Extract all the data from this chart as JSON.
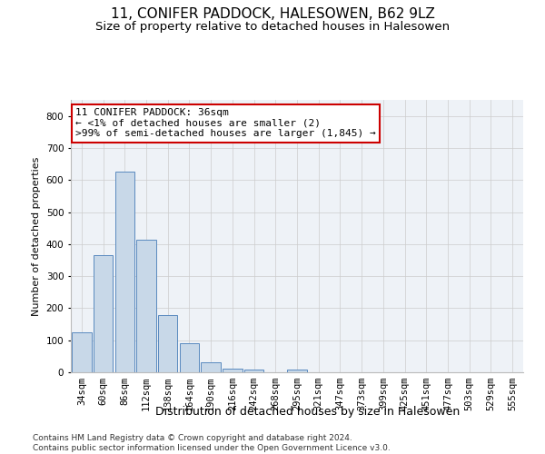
{
  "title1": "11, CONIFER PADDOCK, HALESOWEN, B62 9LZ",
  "title2": "Size of property relative to detached houses in Halesowen",
  "xlabel": "Distribution of detached houses by size in Halesowen",
  "ylabel": "Number of detached properties",
  "categories": [
    "34sqm",
    "60sqm",
    "86sqm",
    "112sqm",
    "138sqm",
    "164sqm",
    "190sqm",
    "216sqm",
    "242sqm",
    "268sqm",
    "295sqm",
    "321sqm",
    "347sqm",
    "373sqm",
    "399sqm",
    "425sqm",
    "451sqm",
    "477sqm",
    "503sqm",
    "529sqm",
    "555sqm"
  ],
  "values": [
    125,
    365,
    625,
    415,
    178,
    90,
    30,
    12,
    8,
    0,
    8,
    0,
    0,
    0,
    0,
    0,
    0,
    0,
    0,
    0,
    0
  ],
  "bar_color": "#c8d8e8",
  "bar_edge_color": "#5a8abf",
  "annotation_line1": "11 CONIFER PADDOCK: 36sqm",
  "annotation_line2": "← <1% of detached houses are smaller (2)",
  "annotation_line3": ">99% of semi-detached houses are larger (1,845) →",
  "annotation_box_color": "#cc0000",
  "annotation_box_fill": "white",
  "ylim": [
    0,
    850
  ],
  "yticks": [
    0,
    100,
    200,
    300,
    400,
    500,
    600,
    700,
    800
  ],
  "grid_color": "#cccccc",
  "bg_color": "#eef2f7",
  "footer_line1": "Contains HM Land Registry data © Crown copyright and database right 2024.",
  "footer_line2": "Contains public sector information licensed under the Open Government Licence v3.0.",
  "title1_fontsize": 11,
  "title2_fontsize": 9.5,
  "xlabel_fontsize": 9,
  "ylabel_fontsize": 8,
  "tick_fontsize": 7.5,
  "annotation_fontsize": 8,
  "footer_fontsize": 6.5
}
